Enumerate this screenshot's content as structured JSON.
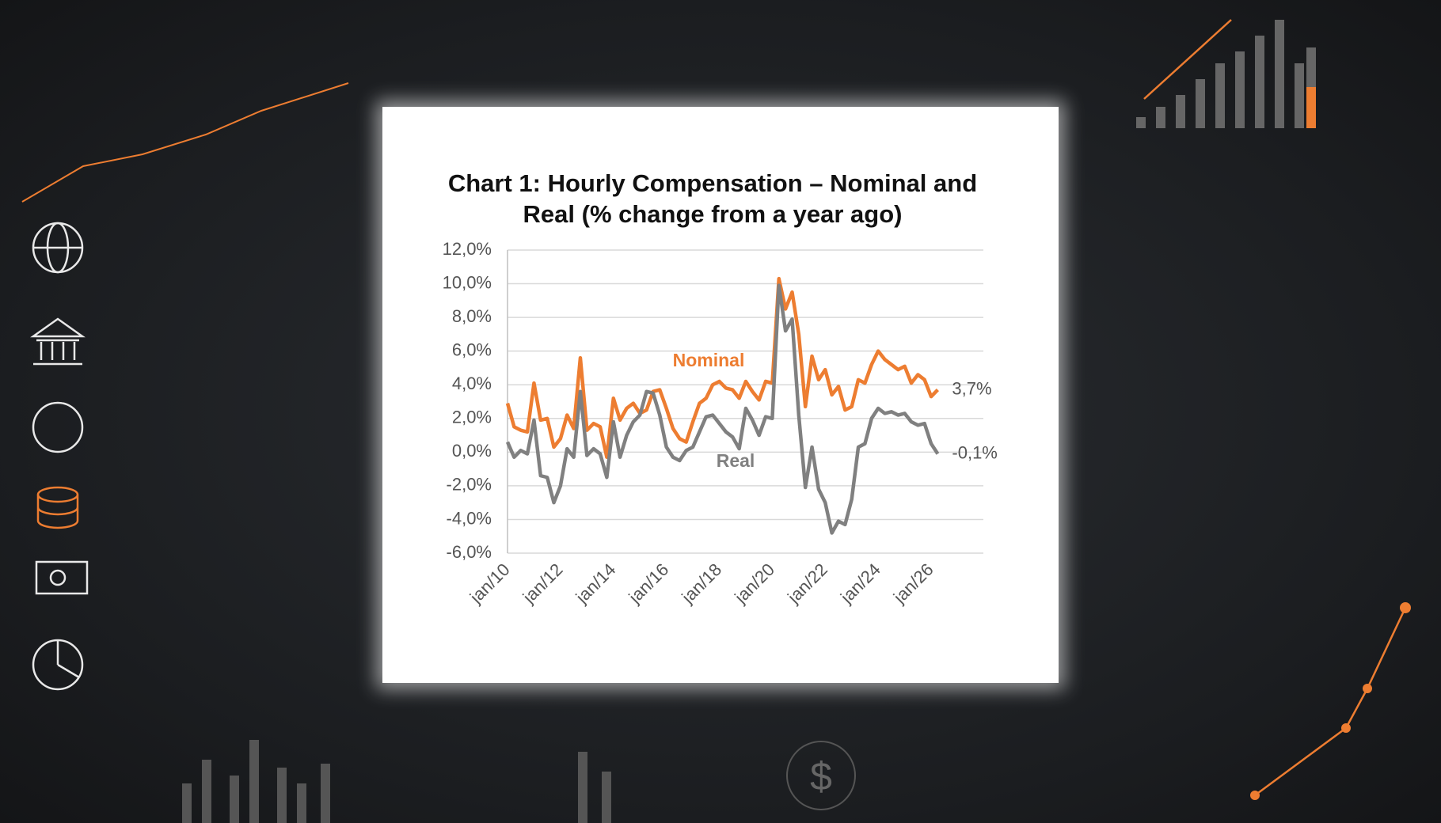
{
  "chart_data": {
    "type": "line",
    "title": "Chart 1: Hourly Compensation – Nominal and Real (% change from a year ago)",
    "categories": [
      "jan/10",
      null,
      null,
      null,
      null,
      null,
      null,
      null,
      "jan/12",
      null,
      null,
      null,
      null,
      null,
      null,
      null,
      "jan/14",
      null,
      null,
      null,
      null,
      null,
      null,
      null,
      "jan/16",
      null,
      null,
      null,
      null,
      null,
      null,
      null,
      "jan/18",
      null,
      null,
      null,
      null,
      null,
      null,
      null,
      "jan/20",
      null,
      null,
      null,
      null,
      null,
      null,
      null,
      "jan/22",
      null,
      null,
      null,
      null,
      null,
      null,
      null,
      "jan/24",
      null,
      null,
      null,
      null,
      null,
      null,
      null,
      "jan/26",
      null
    ],
    "series": [
      {
        "name": "Nominal",
        "color": "#ed7d31",
        "values": [
          2.9,
          1.5,
          1.3,
          1.2,
          4.1,
          1.9,
          2.0,
          0.3,
          0.8,
          2.2,
          1.4,
          5.6,
          1.3,
          1.7,
          1.5,
          -0.3,
          3.2,
          1.9,
          2.6,
          2.9,
          2.3,
          2.5,
          3.6,
          3.7,
          2.6,
          1.4,
          0.8,
          0.6,
          1.8,
          2.9,
          3.2,
          4.0,
          4.2,
          3.8,
          3.7,
          3.2,
          4.2,
          3.6,
          3.1,
          4.2,
          4.1,
          10.3,
          8.5,
          9.5,
          7.0,
          2.7,
          5.7,
          4.3,
          4.9,
          3.4,
          3.9,
          2.5,
          2.7,
          4.3,
          4.1,
          5.2,
          6.0,
          5.5,
          5.2,
          4.9,
          5.1,
          4.1,
          4.6,
          4.3,
          3.3,
          3.7
        ],
        "value_labels": [
          null,
          null,
          null,
          null,
          null,
          null,
          null,
          null,
          null,
          null,
          null,
          null,
          null,
          null,
          null,
          null,
          null,
          null,
          null,
          null,
          null,
          null,
          null,
          null,
          null,
          null,
          null,
          null,
          null,
          null,
          null,
          null,
          null,
          null,
          null,
          null,
          null,
          null,
          null,
          null,
          null,
          null,
          null,
          null,
          null,
          null,
          null,
          null,
          null,
          null,
          null,
          null,
          null,
          null,
          null,
          null,
          null,
          null,
          null,
          null,
          null,
          null,
          null,
          null,
          null,
          "3,7%"
        ]
      },
      {
        "name": "Real",
        "color": "#808080",
        "values": [
          0.6,
          -0.3,
          0.1,
          -0.1,
          1.9,
          -1.4,
          -1.5,
          -3.0,
          -2.0,
          0.2,
          -0.3,
          3.6,
          -0.2,
          0.2,
          -0.1,
          -1.5,
          1.8,
          -0.3,
          1.0,
          1.8,
          2.2,
          3.6,
          3.5,
          2.2,
          0.3,
          -0.3,
          -0.5,
          0.1,
          0.3,
          1.2,
          2.1,
          2.2,
          1.7,
          1.2,
          0.9,
          0.2,
          2.6,
          1.9,
          1.0,
          2.1,
          2.0,
          9.9,
          7.2,
          7.9,
          2.2,
          -2.1,
          0.3,
          -2.2,
          -3.0,
          -4.8,
          -4.1,
          -4.3,
          -2.8,
          0.3,
          0.5,
          2.0,
          2.6,
          2.3,
          2.4,
          2.2,
          2.3,
          1.8,
          1.6,
          1.7,
          0.5,
          -0.1
        ],
        "value_labels": [
          null,
          null,
          null,
          null,
          null,
          null,
          null,
          null,
          null,
          null,
          null,
          null,
          null,
          null,
          null,
          null,
          null,
          null,
          null,
          null,
          null,
          null,
          null,
          null,
          null,
          null,
          null,
          null,
          null,
          null,
          null,
          null,
          null,
          null,
          null,
          null,
          null,
          null,
          null,
          null,
          null,
          null,
          null,
          null,
          null,
          null,
          null,
          null,
          null,
          null,
          null,
          null,
          null,
          null,
          null,
          null,
          null,
          null,
          null,
          null,
          null,
          null,
          null,
          null,
          null,
          "-0,1%"
        ]
      }
    ],
    "ylim": [
      -6,
      12
    ],
    "yticks": [
      {
        "value": -6,
        "label": "-6,0%"
      },
      {
        "value": -4,
        "label": "-4,0%"
      },
      {
        "value": -2,
        "label": "-2,0%"
      },
      {
        "value": 0,
        "label": "0,0%"
      },
      {
        "value": 2,
        "label": "2,0%"
      },
      {
        "value": 4,
        "label": "4,0%"
      },
      {
        "value": 6,
        "label": "6,0%"
      },
      {
        "value": 8,
        "label": "8,0%"
      },
      {
        "value": 10,
        "label": "10,0%"
      },
      {
        "value": 12,
        "label": "12,0%"
      }
    ],
    "grid": true
  }
}
